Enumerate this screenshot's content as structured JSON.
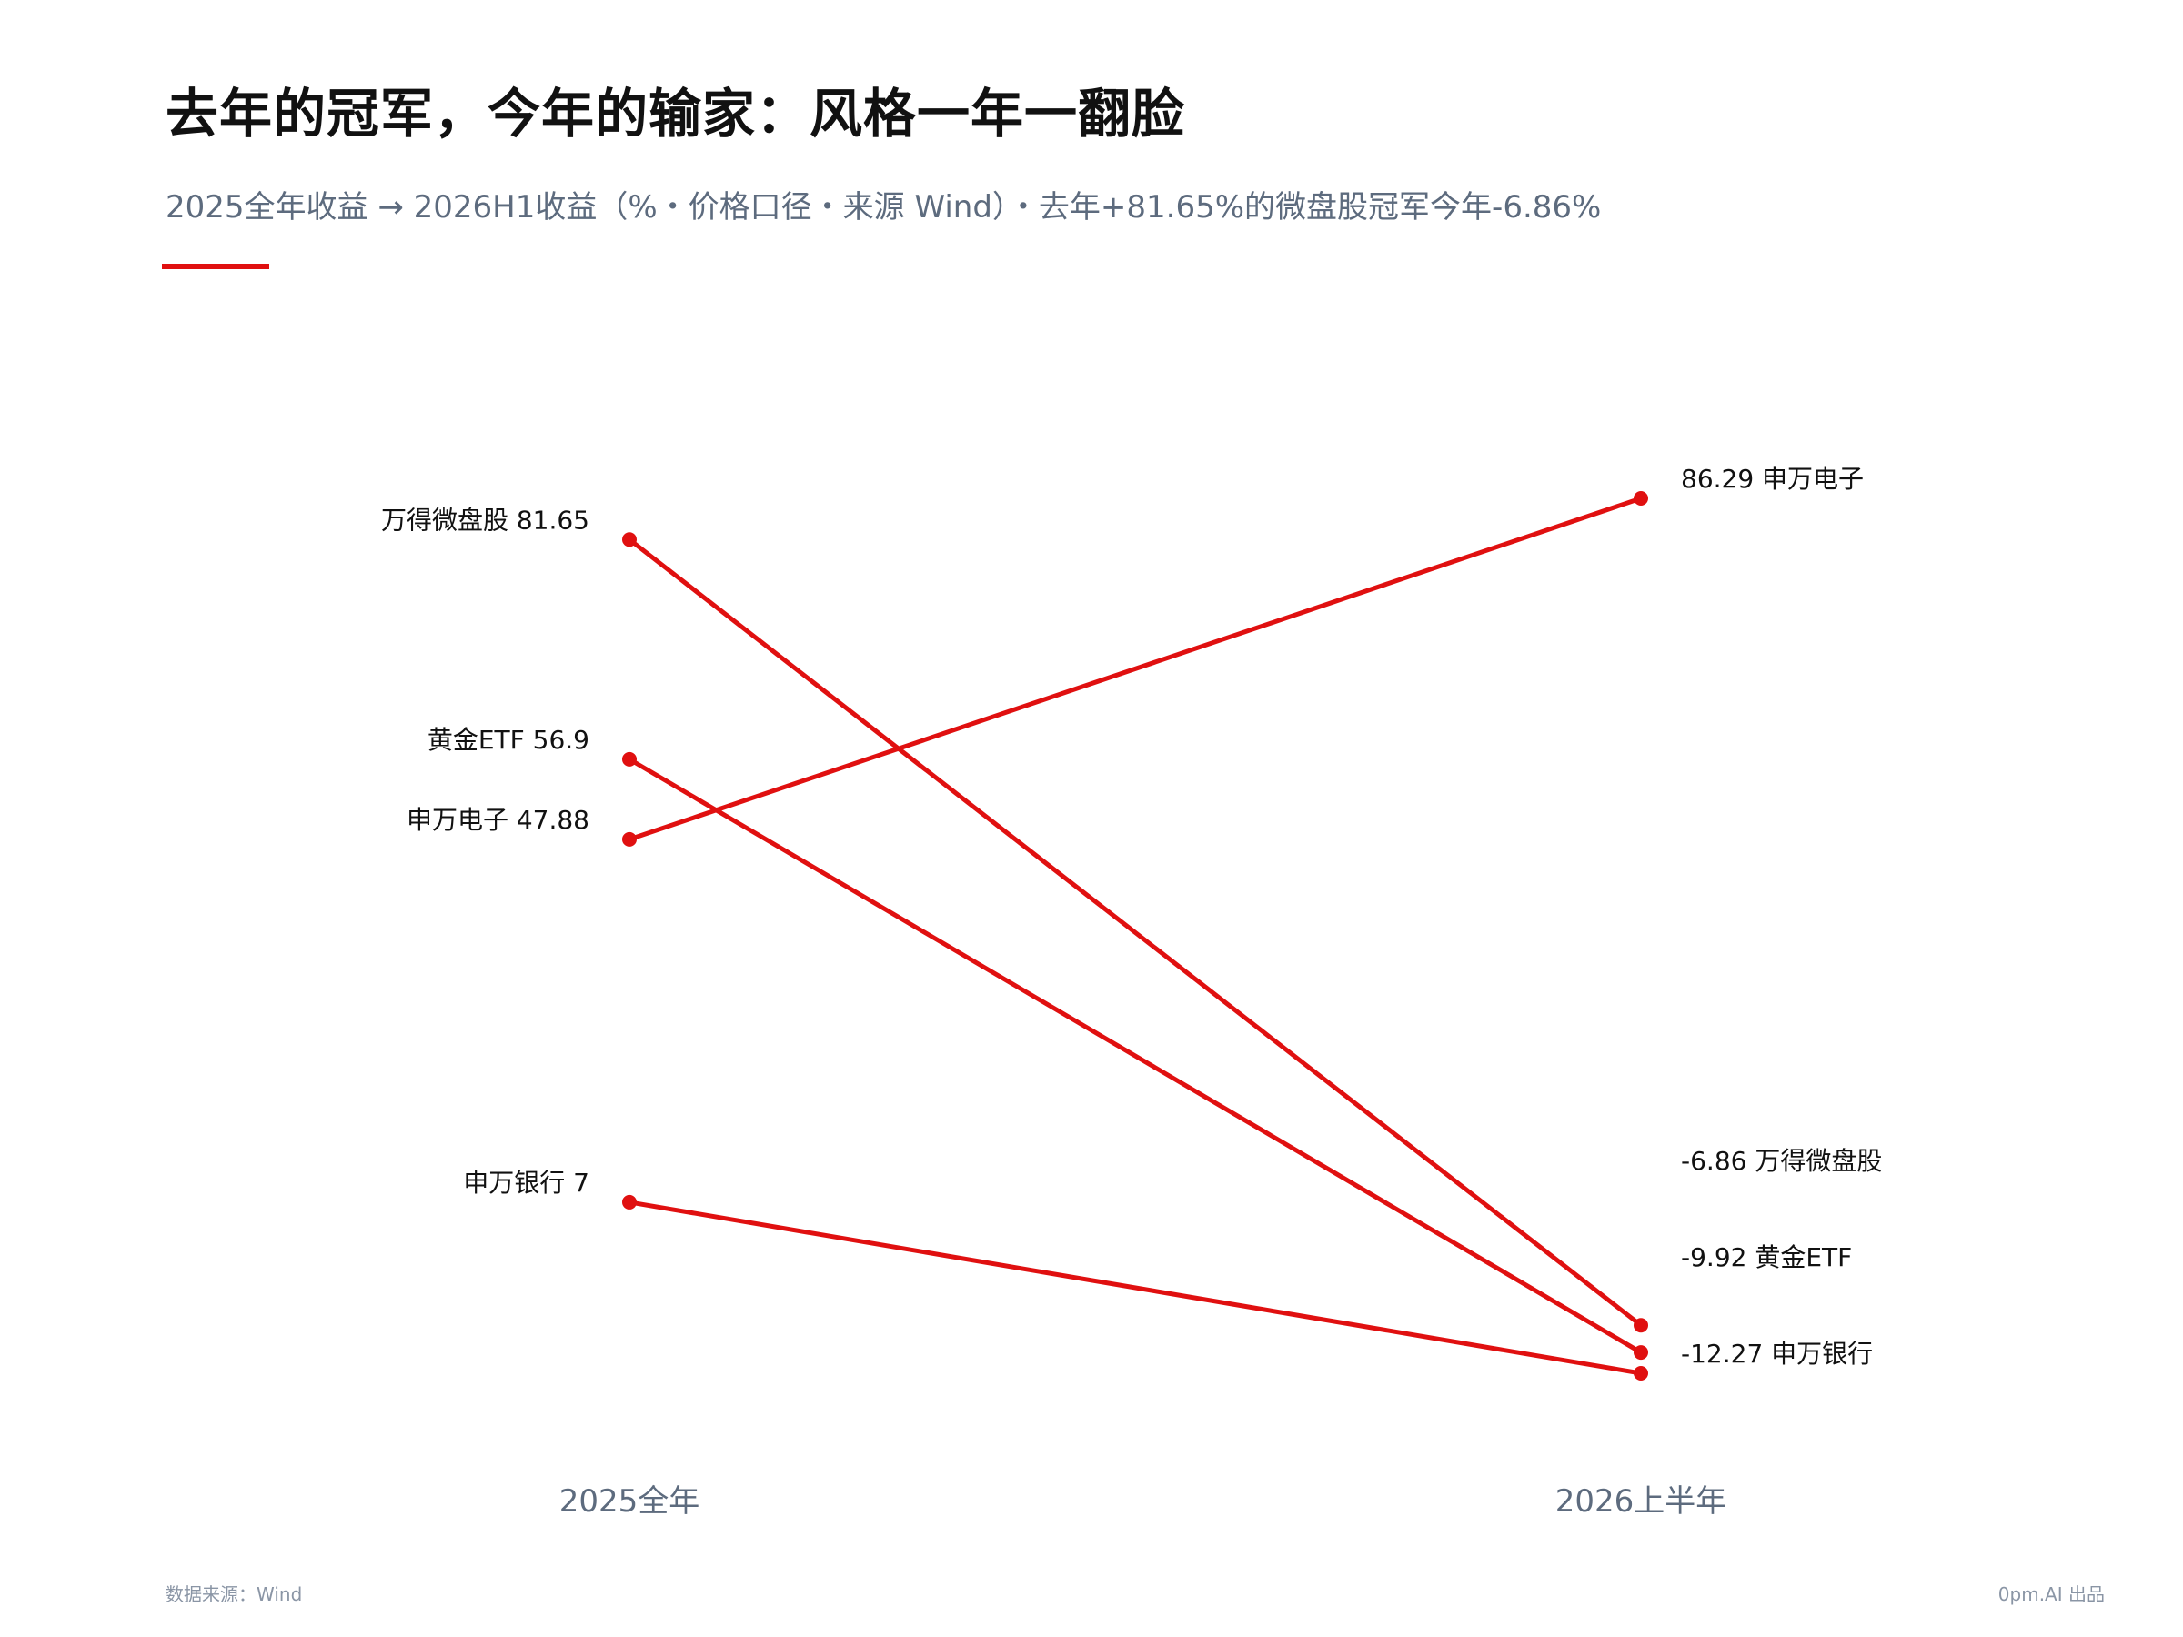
{
  "header": {
    "title": "去年的冠军，今年的输家：风格一年一翻脸",
    "subtitle": "2025全年收益 → 2026H1收益（%・价格口径・来源 Wind）・去年+81.65%的微盘股冠军今年-6.86%"
  },
  "footer": {
    "source": "数据来源：Wind",
    "credit": "0pm.AI 出品"
  },
  "colors": {
    "accent": "#e01010",
    "text": "#111111",
    "muted": "#5d6b7e"
  },
  "chart_data": {
    "type": "line",
    "subtype": "slope",
    "categories": [
      "2025全年",
      "2026上半年"
    ],
    "series": [
      {
        "name": "万得微盘股",
        "values": [
          81.65,
          -6.86
        ],
        "start_label": "万得微盘股  81.65",
        "end_label": "-6.86  万得微盘股"
      },
      {
        "name": "黄金ETF",
        "values": [
          56.9,
          -9.92
        ],
        "start_label": "黄金ETF  56.9",
        "end_label": "-9.92  黄金ETF"
      },
      {
        "name": "申万电子",
        "values": [
          47.88,
          86.29
        ],
        "start_label": "申万电子  47.88",
        "end_label": "86.29  申万电子"
      },
      {
        "name": "申万银行",
        "values": [
          7,
          -12.27
        ],
        "start_label": "申万银行  7",
        "end_label": "-12.27  申万银行"
      }
    ],
    "ylim": [
      -12.27,
      86.29
    ],
    "grid": false,
    "legend": "none"
  }
}
